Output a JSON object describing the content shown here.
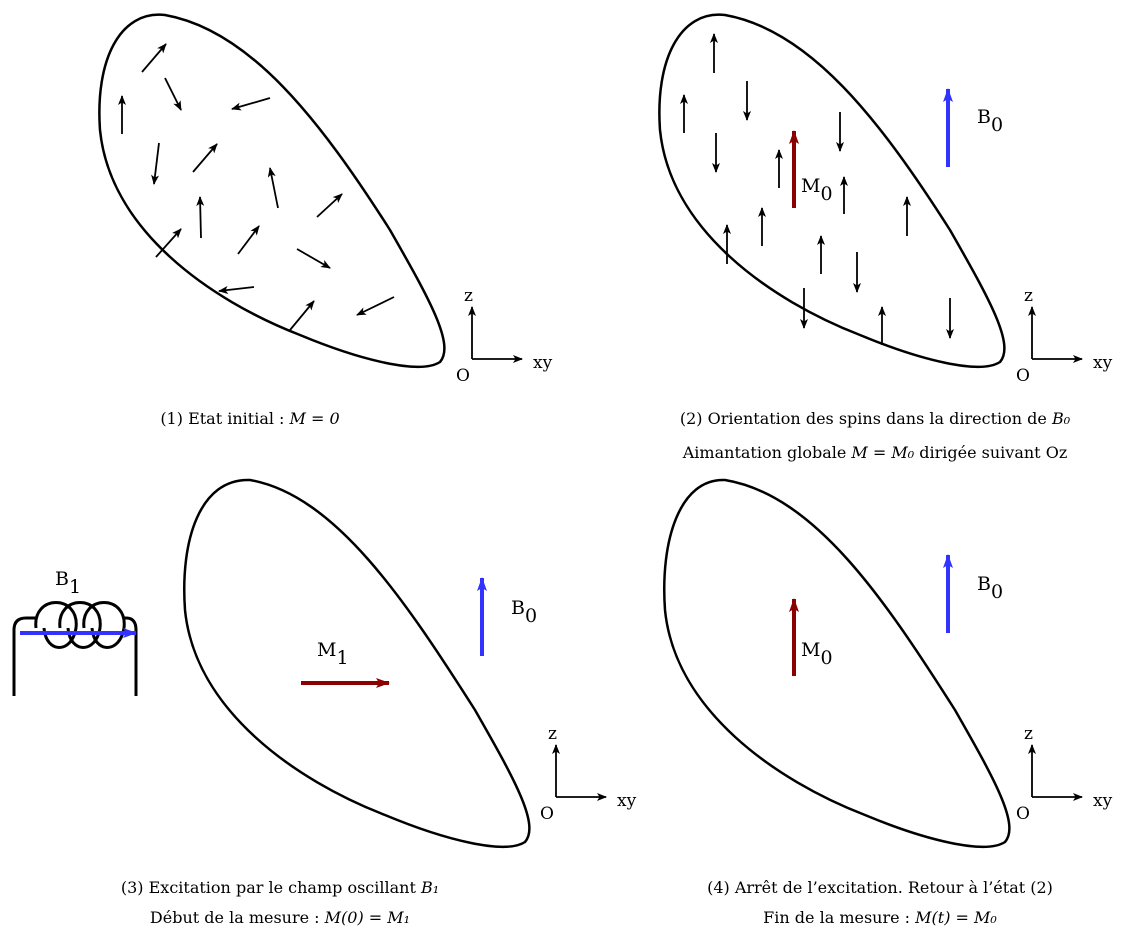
{
  "colors": {
    "outline": "#000000",
    "magnetization": "#8b0000",
    "field": "#3333ff"
  },
  "axes_labels": {
    "z": "z",
    "xy": "xy",
    "origin": "O"
  },
  "panels": [
    {
      "id": "panel-1",
      "caption_lines": [
        {
          "prefix": "(1) Etat initial : ",
          "math": "M = 0",
          "suffix": ""
        }
      ]
    },
    {
      "id": "panel-2",
      "labels": {
        "b0": "B",
        "b0_sub": "0",
        "m0": "M",
        "m0_sub": "0"
      },
      "caption_lines": [
        {
          "prefix": "(2) Orientation des spins dans la direction de ",
          "math": "B₀",
          "suffix": ""
        },
        {
          "prefix": "Aimantation globale ",
          "math": "M = M₀",
          "suffix": " dirigée suivant Oz"
        }
      ]
    },
    {
      "id": "panel-3",
      "labels": {
        "b1": "B",
        "b1_sub": "1",
        "b0": "B",
        "b0_sub": "0",
        "m1": "M",
        "m1_sub": "1"
      },
      "caption_lines": [
        {
          "prefix": "(3) Excitation par le champ oscillant ",
          "math": "B₁",
          "suffix": ""
        },
        {
          "prefix": "Début de la mesure : ",
          "math": "M(0) = M₁",
          "suffix": ""
        }
      ]
    },
    {
      "id": "panel-4",
      "labels": {
        "b0": "B",
        "b0_sub": "0",
        "m0": "M",
        "m0_sub": "0"
      },
      "caption_lines": [
        {
          "prefix": "(4) Arrêt de l’excitation. Retour à l’état (2)",
          "math": "",
          "suffix": ""
        },
        {
          "prefix": "Fin de la mesure : ",
          "math": "M(t) = M₀",
          "suffix": ""
        }
      ]
    }
  ]
}
